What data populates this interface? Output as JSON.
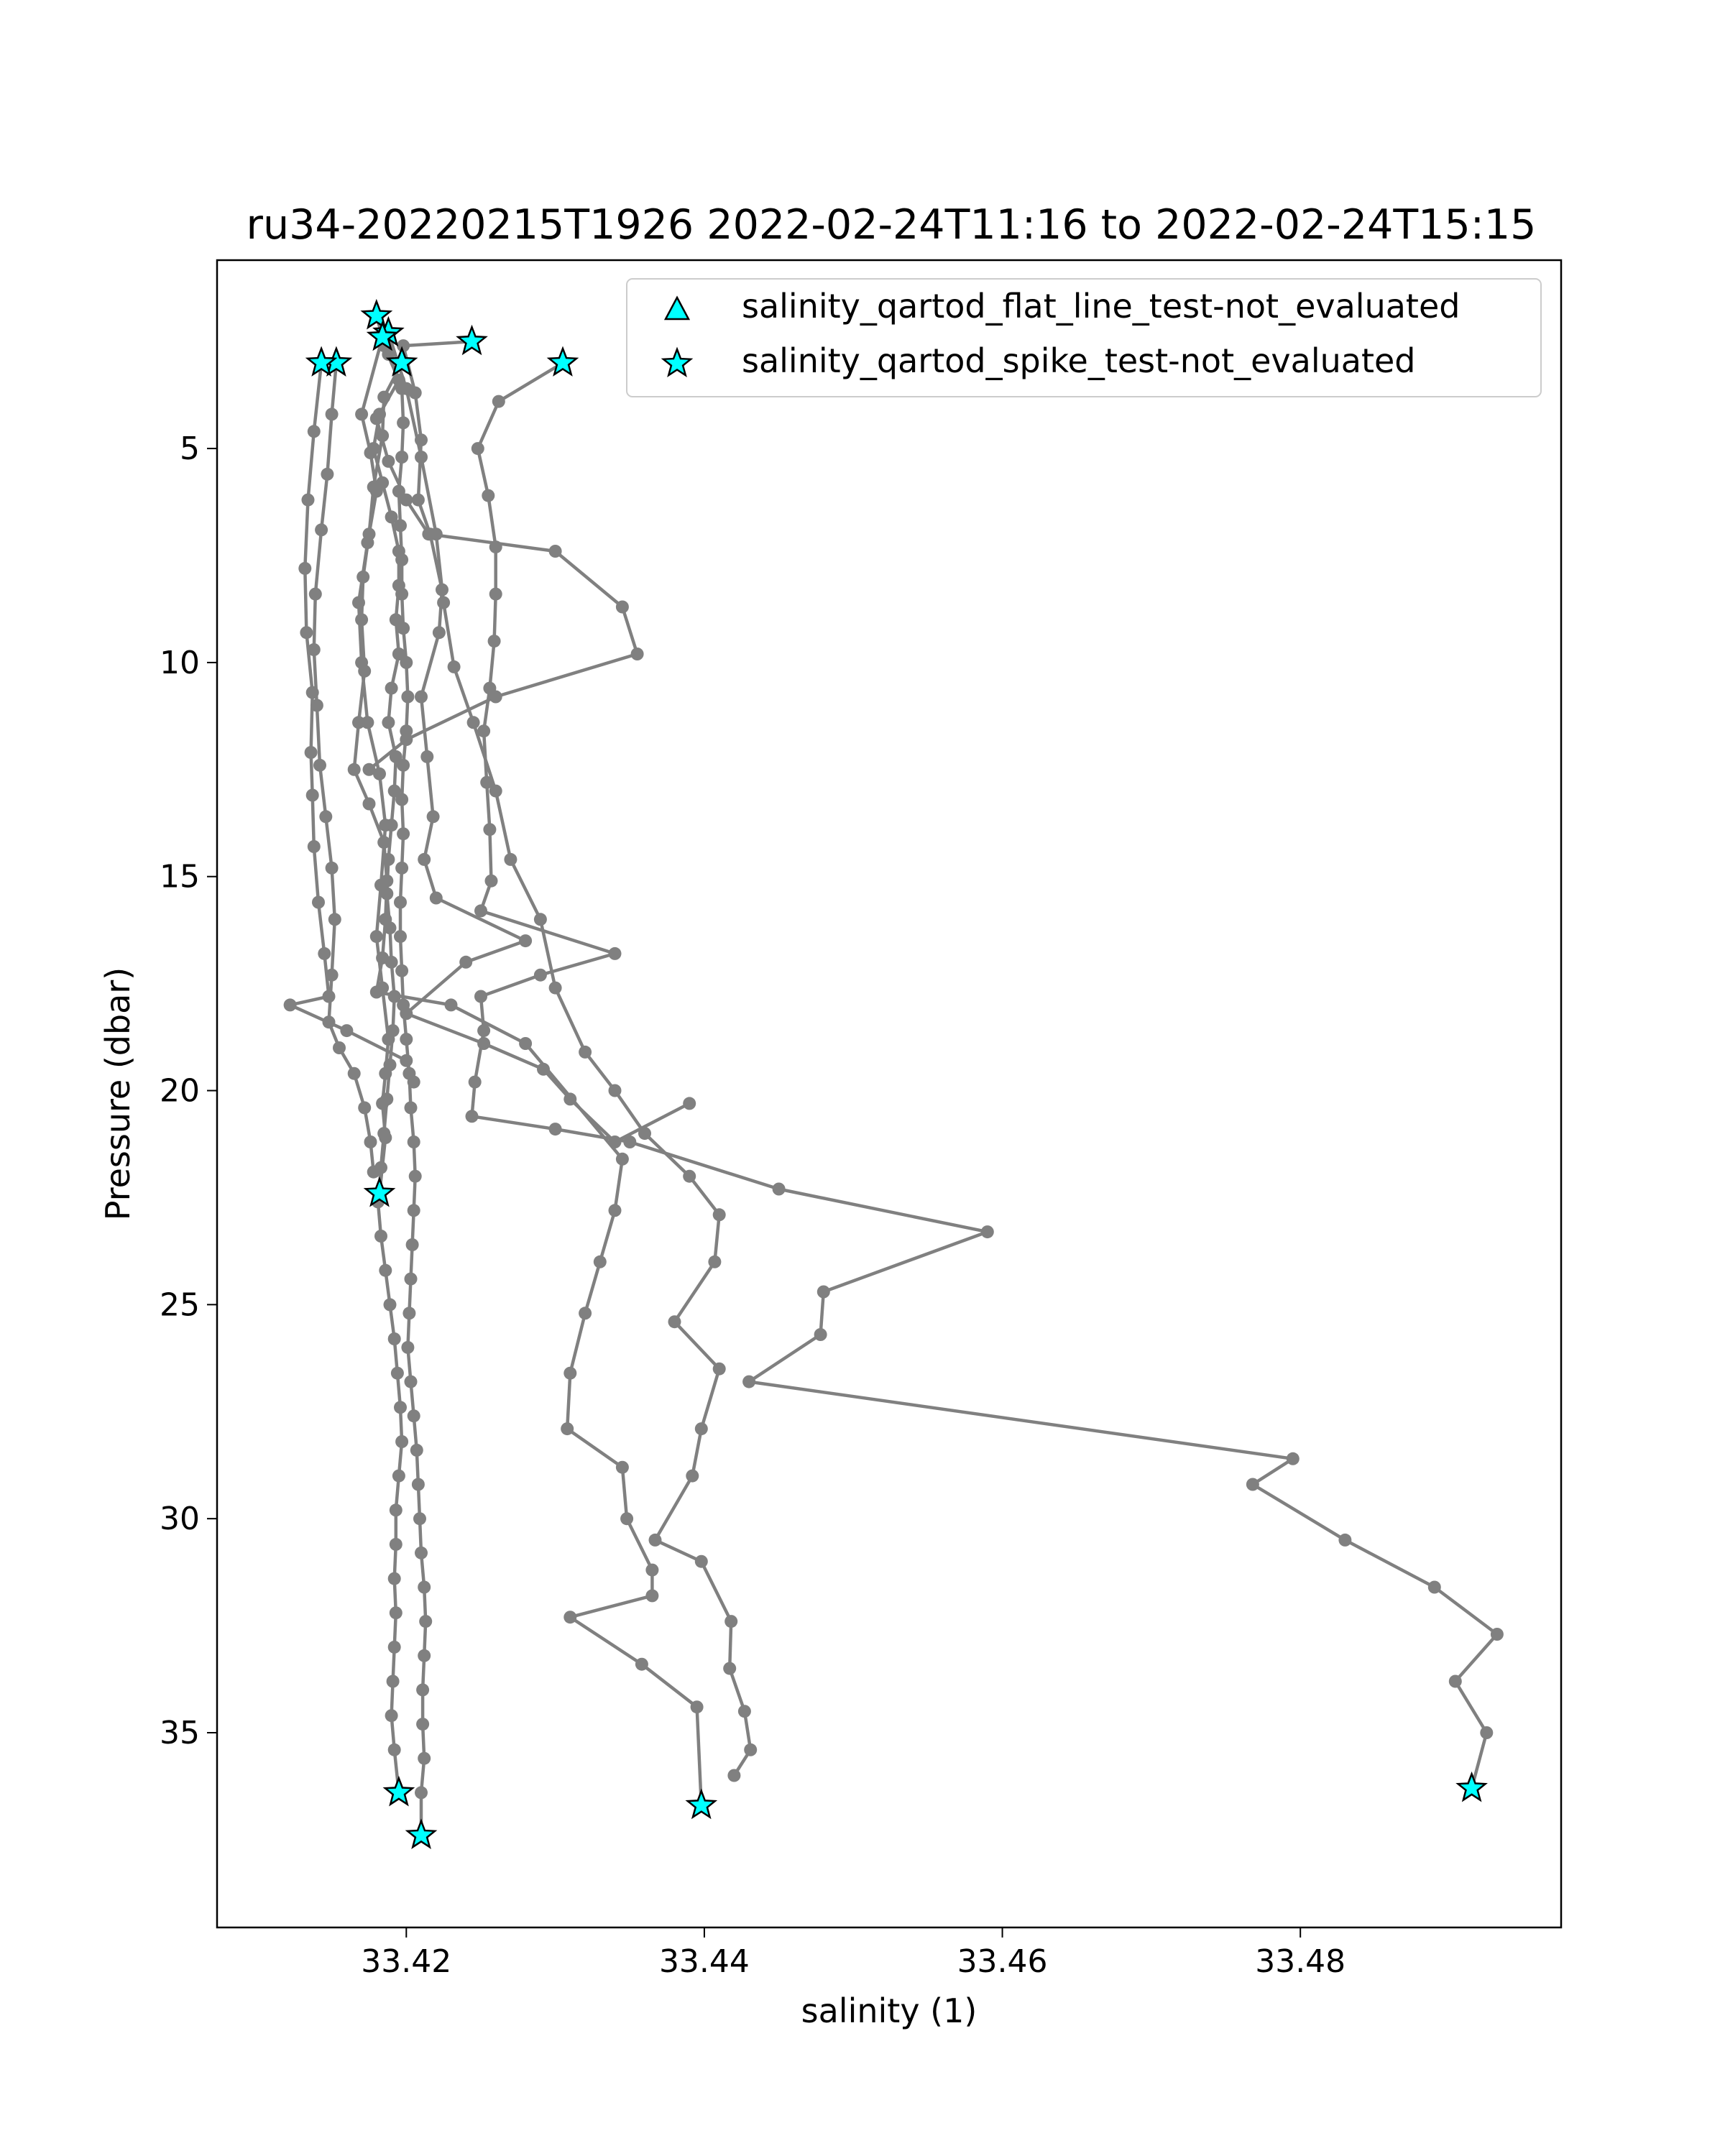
{
  "chart_data": {
    "type": "scatter",
    "title": "ru34-20220215T1926 2022-02-24T11:16 to 2022-02-24T15:15",
    "xlabel": "salinity (1)",
    "ylabel": "Pressure (dbar)",
    "xlim": [
      33.4073,
      33.4975
    ],
    "ylim": [
      39.55,
      0.6
    ],
    "y_inverted": true,
    "x_ticks": [
      33.42,
      33.44,
      33.46,
      33.48
    ],
    "x_tick_labels": [
      "33.42",
      "33.44",
      "33.46",
      "33.48"
    ],
    "y_ticks": [
      5,
      10,
      15,
      20,
      25,
      30,
      35
    ],
    "y_tick_labels": [
      "5",
      "10",
      "15",
      "20",
      "25",
      "30",
      "35"
    ],
    "grid": false,
    "legend_position": "top-right",
    "line_color": "#808080",
    "marker_fill": "#00ffff",
    "marker_edge": "#000000",
    "profiles": [
      {
        "points": [
          [
            33.4185,
            2.6
          ],
          [
            33.4195,
            3.4
          ],
          [
            33.4182,
            4.2
          ],
          [
            33.4178,
            5.0
          ],
          [
            33.4184,
            5.8
          ],
          [
            33.419,
            6.6
          ],
          [
            33.4195,
            7.4
          ],
          [
            33.4195,
            8.2
          ],
          [
            33.4193,
            9.0
          ],
          [
            33.4195,
            9.8
          ],
          [
            33.419,
            10.6
          ],
          [
            33.4188,
            11.4
          ],
          [
            33.4193,
            12.2
          ],
          [
            33.4192,
            13.0
          ],
          [
            33.419,
            13.8
          ],
          [
            33.4188,
            14.6
          ],
          [
            33.4187,
            15.4
          ],
          [
            33.4189,
            16.2
          ],
          [
            33.419,
            17.0
          ],
          [
            33.4192,
            17.8
          ],
          [
            33.4191,
            18.6
          ],
          [
            33.4189,
            19.4
          ],
          [
            33.4187,
            20.2
          ],
          [
            33.4185,
            21.0
          ],
          [
            33.4183,
            21.8
          ],
          [
            33.4181,
            22.6
          ],
          [
            33.4183,
            23.4
          ],
          [
            33.4186,
            24.2
          ],
          [
            33.4189,
            25.0
          ],
          [
            33.4192,
            25.8
          ],
          [
            33.4194,
            26.6
          ],
          [
            33.4196,
            27.4
          ],
          [
            33.4197,
            28.2
          ],
          [
            33.4195,
            29.0
          ],
          [
            33.4193,
            29.8
          ],
          [
            33.4193,
            30.6
          ],
          [
            33.4192,
            31.4
          ],
          [
            33.4193,
            32.2
          ],
          [
            33.4192,
            33.0
          ],
          [
            33.4191,
            33.8
          ],
          [
            33.419,
            34.6
          ],
          [
            33.4192,
            35.4
          ],
          [
            33.4195,
            36.4
          ]
        ]
      },
      {
        "points": [
          [
            33.4188,
            2.8
          ],
          [
            33.4197,
            3.6
          ],
          [
            33.4198,
            4.4
          ],
          [
            33.4197,
            5.2
          ],
          [
            33.4195,
            6.0
          ],
          [
            33.4196,
            6.8
          ],
          [
            33.4197,
            7.6
          ],
          [
            33.4197,
            8.4
          ],
          [
            33.4198,
            9.2
          ],
          [
            33.42,
            10.0
          ],
          [
            33.4201,
            10.8
          ],
          [
            33.42,
            11.6
          ],
          [
            33.4198,
            12.4
          ],
          [
            33.4197,
            13.2
          ],
          [
            33.4198,
            14.0
          ],
          [
            33.4197,
            14.8
          ],
          [
            33.4196,
            15.6
          ],
          [
            33.4196,
            16.4
          ],
          [
            33.4197,
            17.2
          ],
          [
            33.4198,
            18.0
          ],
          [
            33.42,
            18.8
          ],
          [
            33.4202,
            19.6
          ],
          [
            33.4203,
            20.4
          ],
          [
            33.4205,
            21.2
          ],
          [
            33.4206,
            22.0
          ],
          [
            33.4205,
            22.8
          ],
          [
            33.4204,
            23.6
          ],
          [
            33.4203,
            24.4
          ],
          [
            33.4202,
            25.2
          ],
          [
            33.4201,
            26.0
          ],
          [
            33.4203,
            26.8
          ],
          [
            33.4205,
            27.6
          ],
          [
            33.4207,
            28.4
          ],
          [
            33.4208,
            29.2
          ],
          [
            33.4209,
            30.0
          ],
          [
            33.421,
            30.8
          ],
          [
            33.4212,
            31.6
          ],
          [
            33.4213,
            32.4
          ],
          [
            33.4212,
            33.2
          ],
          [
            33.4211,
            34.0
          ],
          [
            33.4211,
            34.8
          ],
          [
            33.4212,
            35.6
          ],
          [
            33.421,
            36.4
          ],
          [
            33.421,
            37.4
          ]
        ]
      },
      {
        "points": [
          [
            33.418,
            1.9
          ],
          [
            33.4184,
            2.4
          ],
          [
            33.417,
            4.2
          ],
          [
            33.4176,
            5.1
          ],
          [
            33.418,
            6.0
          ],
          [
            33.4174,
            7.2
          ],
          [
            33.4168,
            8.6
          ],
          [
            33.417,
            10.0
          ],
          [
            33.4174,
            11.4
          ],
          [
            33.4182,
            12.6
          ],
          [
            33.4186,
            13.8
          ],
          [
            33.4183,
            15.2
          ],
          [
            33.418,
            16.4
          ],
          [
            33.4184,
            17.6
          ],
          [
            33.4188,
            18.8
          ],
          [
            33.4186,
            19.6
          ],
          [
            33.4184,
            20.3
          ],
          [
            33.4186,
            21.1
          ],
          [
            33.4182,
            22.4
          ]
        ]
      },
      {
        "points": [
          [
            33.4153,
            3.0
          ],
          [
            33.415,
            4.2
          ],
          [
            33.4147,
            5.6
          ],
          [
            33.4143,
            6.9
          ],
          [
            33.4139,
            8.4
          ],
          [
            33.4138,
            9.7
          ],
          [
            33.414,
            11.0
          ],
          [
            33.4142,
            12.4
          ],
          [
            33.4146,
            13.6
          ],
          [
            33.415,
            14.8
          ],
          [
            33.4152,
            16.0
          ],
          [
            33.415,
            17.3
          ],
          [
            33.4148,
            18.4
          ],
          [
            33.4155,
            19.0
          ],
          [
            33.4165,
            19.6
          ],
          [
            33.4172,
            20.4
          ],
          [
            33.4176,
            21.2
          ],
          [
            33.4178,
            21.9
          ]
        ]
      },
      {
        "points": [
          [
            33.4143,
            3.0
          ],
          [
            33.4138,
            4.6
          ],
          [
            33.4134,
            6.2
          ],
          [
            33.4132,
            7.8
          ],
          [
            33.4133,
            9.3
          ],
          [
            33.4137,
            10.7
          ],
          [
            33.4136,
            12.1
          ],
          [
            33.4137,
            13.1
          ],
          [
            33.4138,
            14.3
          ],
          [
            33.4141,
            15.6
          ],
          [
            33.4145,
            16.8
          ],
          [
            33.4148,
            17.8
          ],
          [
            33.4122,
            18.0
          ],
          [
            33.416,
            18.6
          ],
          [
            33.42,
            19.3
          ],
          [
            33.4205,
            19.8
          ]
        ]
      },
      {
        "points": [
          [
            33.4244,
            2.5
          ],
          [
            33.4198,
            2.6
          ],
          [
            33.4206,
            3.7
          ],
          [
            33.421,
            4.8
          ],
          [
            33.4208,
            6.2
          ],
          [
            33.4216,
            7.0
          ],
          [
            33.4224,
            8.3
          ],
          [
            33.4222,
            9.3
          ],
          [
            33.421,
            10.8
          ],
          [
            33.4214,
            12.2
          ],
          [
            33.4218,
            13.6
          ],
          [
            33.4212,
            14.6
          ],
          [
            33.422,
            15.5
          ],
          [
            33.428,
            16.5
          ],
          [
            33.424,
            17.0
          ],
          [
            33.42,
            18.2
          ],
          [
            33.4252,
            18.9
          ],
          [
            33.4292,
            19.5
          ],
          [
            33.431,
            20.2
          ],
          [
            33.434,
            21.2
          ],
          [
            33.439,
            20.3
          ]
        ]
      },
      {
        "points": [
          [
            33.4305,
            3.0
          ],
          [
            33.4262,
            3.9
          ],
          [
            33.4248,
            5.0
          ],
          [
            33.4255,
            6.1
          ],
          [
            33.426,
            7.3
          ],
          [
            33.426,
            8.4
          ],
          [
            33.4259,
            9.5
          ],
          [
            33.4256,
            10.6
          ],
          [
            33.4252,
            11.6
          ],
          [
            33.4254,
            12.8
          ],
          [
            33.4256,
            13.9
          ],
          [
            33.4257,
            15.1
          ],
          [
            33.425,
            15.8
          ],
          [
            33.434,
            16.8
          ],
          [
            33.429,
            17.3
          ],
          [
            33.425,
            17.8
          ],
          [
            33.4252,
            18.6
          ],
          [
            33.4246,
            19.8
          ],
          [
            33.4244,
            20.6
          ],
          [
            33.43,
            20.9
          ],
          [
            33.435,
            21.2
          ],
          [
            33.445,
            22.3
          ],
          [
            33.459,
            23.3
          ],
          [
            33.448,
            24.7
          ],
          [
            33.4478,
            25.7
          ],
          [
            33.443,
            26.8
          ],
          [
            33.4795,
            28.6
          ],
          [
            33.4768,
            29.2
          ],
          [
            33.483,
            30.5
          ],
          [
            33.489,
            31.6
          ],
          [
            33.4932,
            32.7
          ],
          [
            33.4904,
            33.8
          ],
          [
            33.4925,
            35.0
          ],
          [
            33.4915,
            36.3
          ]
        ]
      },
      {
        "points": [
          [
            33.418,
            4.3
          ],
          [
            33.4188,
            5.3
          ],
          [
            33.42,
            6.2
          ],
          [
            33.4215,
            7.0
          ],
          [
            33.43,
            7.4
          ],
          [
            33.4345,
            8.7
          ],
          [
            33.4355,
            9.8
          ],
          [
            33.426,
            10.8
          ],
          [
            33.42,
            11.8
          ],
          [
            33.4175,
            12.5
          ]
        ]
      },
      {
        "points": [
          [
            33.4197,
            3.0
          ],
          [
            33.4185,
            3.8
          ],
          [
            33.4184,
            4.7
          ],
          [
            33.4178,
            5.9
          ],
          [
            33.4175,
            7.0
          ],
          [
            33.4171,
            8.0
          ],
          [
            33.417,
            9.0
          ],
          [
            33.4172,
            10.2
          ],
          [
            33.4168,
            11.4
          ],
          [
            33.4165,
            12.5
          ],
          [
            33.4175,
            13.3
          ],
          [
            33.4185,
            14.2
          ],
          [
            33.4187,
            15.1
          ],
          [
            33.4186,
            16.0
          ],
          [
            33.4184,
            16.9
          ],
          [
            33.418,
            17.7
          ],
          [
            33.423,
            18.0
          ],
          [
            33.428,
            18.9
          ],
          [
            33.4345,
            21.6
          ],
          [
            33.434,
            22.8
          ],
          [
            33.433,
            24.0
          ],
          [
            33.432,
            25.2
          ],
          [
            33.431,
            26.6
          ],
          [
            33.4308,
            27.9
          ],
          [
            33.4345,
            28.8
          ],
          [
            33.4348,
            30.0
          ],
          [
            33.4365,
            31.2
          ],
          [
            33.4365,
            31.8
          ],
          [
            33.431,
            32.3
          ],
          [
            33.4358,
            33.4
          ],
          [
            33.4395,
            34.4
          ],
          [
            33.4398,
            36.7
          ]
        ]
      },
      {
        "points": [
          [
            33.4188,
            2.3
          ],
          [
            33.42,
            3.6
          ],
          [
            33.421,
            5.2
          ],
          [
            33.422,
            7.0
          ],
          [
            33.4225,
            8.6
          ],
          [
            33.4232,
            10.1
          ],
          [
            33.4245,
            11.4
          ],
          [
            33.426,
            13.0
          ],
          [
            33.427,
            14.6
          ],
          [
            33.429,
            16.0
          ],
          [
            33.43,
            17.6
          ],
          [
            33.432,
            19.1
          ],
          [
            33.434,
            20.0
          ],
          [
            33.436,
            21.0
          ],
          [
            33.439,
            22.0
          ],
          [
            33.441,
            22.9
          ],
          [
            33.4407,
            24.0
          ],
          [
            33.438,
            25.4
          ],
          [
            33.441,
            26.5
          ],
          [
            33.4398,
            27.9
          ],
          [
            33.4392,
            29.0
          ],
          [
            33.4367,
            30.5
          ],
          [
            33.4398,
            31.0
          ],
          [
            33.4418,
            32.4
          ],
          [
            33.4417,
            33.5
          ],
          [
            33.4427,
            34.5
          ],
          [
            33.4431,
            35.4
          ],
          [
            33.442,
            36.0
          ]
        ]
      }
    ],
    "series": [
      {
        "name": "salinity_qartod_flat_line_test-not_evaluated",
        "marker": "triangle",
        "points": []
      },
      {
        "name": "salinity_qartod_spike_test-not_evaluated",
        "marker": "star",
        "points": [
          [
            33.418,
            1.9
          ],
          [
            33.4188,
            2.3
          ],
          [
            33.4184,
            2.4
          ],
          [
            33.4244,
            2.5
          ],
          [
            33.4153,
            3.0
          ],
          [
            33.4143,
            3.0
          ],
          [
            33.4197,
            3.0
          ],
          [
            33.4305,
            3.0
          ],
          [
            33.4182,
            22.4
          ],
          [
            33.4195,
            36.4
          ],
          [
            33.4398,
            36.7
          ],
          [
            33.4915,
            36.3
          ],
          [
            33.421,
            37.4
          ]
        ]
      }
    ]
  }
}
